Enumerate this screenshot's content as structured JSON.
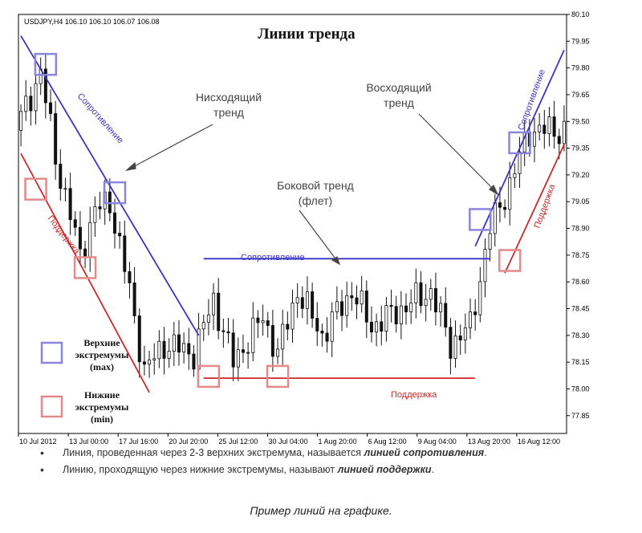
{
  "chart_data": {
    "type": "candlestick",
    "symbol_header": "USDJPY,H4  106.10 106.10 106.07 106.08",
    "title": "Линии тренда",
    "ylim": [
      77.75,
      80.1
    ],
    "y_ticks": [
      77.85,
      78.0,
      78.15,
      78.3,
      78.45,
      78.6,
      78.75,
      78.9,
      79.05,
      79.2,
      79.35,
      79.5,
      79.65,
      79.8,
      79.95,
      80.1
    ],
    "x_tick_labels": [
      "10 Jul 2012",
      "13 Jul 00:00",
      "17 Jul 16:00",
      "20 Jul 20:00",
      "25 Jul 12:00",
      "30 Jul 04:00",
      "1 Aug 20:00",
      "6 Aug 12:00",
      "9 Aug 04:00",
      "13 Aug 20:00",
      "16 Aug 12:00"
    ],
    "annotations": {
      "descending_trend": [
        "Нисходящий",
        "тренд"
      ],
      "ascending_trend": [
        "Восходящий",
        "тренд"
      ],
      "sideways_trend": [
        "Боковой тренд",
        "(флет)"
      ],
      "resistance": "Сопротивление",
      "support": "Поддержка"
    },
    "legend": {
      "upper": [
        "Верхние",
        "экстремумы",
        "(max)"
      ],
      "lower": [
        "Нижние",
        "экстремумы",
        "(min)"
      ]
    },
    "trend_lines": {
      "descending_resistance": {
        "start": [
          0,
          79.98
        ],
        "end": [
          36,
          78.3
        ]
      },
      "descending_support": {
        "start": [
          0,
          79.32
        ],
        "end": [
          26,
          77.98
        ]
      },
      "flat_resistance": {
        "start": [
          37,
          78.73
        ],
        "end": [
          95,
          78.73
        ]
      },
      "flat_support": {
        "start": [
          37,
          78.06
        ],
        "end": [
          92,
          78.06
        ]
      },
      "ascending_resistance": {
        "start": [
          92,
          78.8
        ],
        "end": [
          110,
          79.9
        ]
      },
      "ascending_support": {
        "start": [
          98,
          78.65
        ],
        "end": [
          110,
          79.37
        ]
      }
    },
    "extremum_markers": {
      "max": [
        [
          5,
          79.82
        ],
        [
          19,
          79.1
        ],
        [
          93,
          78.95
        ],
        [
          101,
          79.38
        ]
      ],
      "min": [
        [
          3,
          79.12
        ],
        [
          13,
          78.68
        ],
        [
          38,
          78.07
        ],
        [
          52,
          78.07
        ],
        [
          99,
          78.72
        ]
      ]
    },
    "colors": {
      "resistance": "#3a33c4",
      "support": "#cc2929",
      "max_marker": "#8a85dd",
      "min_marker": "#e58a8a",
      "candle": "#111111"
    }
  },
  "notes": {
    "bullet1_prefix": "Линия, проведенная через 2-3 верхних экстремума, называется ",
    "bullet1_em": "линией сопротивления",
    "bullet1_suffix": ".",
    "bullet2_prefix": "Линию, проходящую через нижние экстремумы, называют ",
    "bullet2_em": "линией поддержки",
    "bullet2_suffix": ".",
    "bullet_symbol": "•"
  },
  "caption": "Пример линий на графике."
}
